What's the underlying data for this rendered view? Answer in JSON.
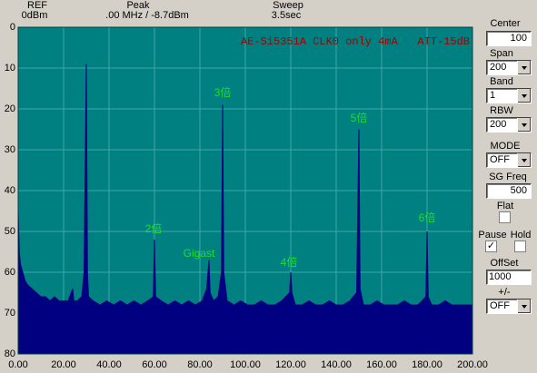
{
  "header": {
    "ref_label": "REF",
    "ref_value": "0dBm",
    "peak_label": "Peak",
    "peak_value": ".00 MHz / -8.7dBm",
    "sweep_label": "Sweep",
    "sweep_value": "3.5sec"
  },
  "chart_data": {
    "type": "area",
    "title": "AE-Si5351A CLK0 only 4mA   ATT-15dB",
    "x": [
      0,
      0.5,
      1,
      2,
      3,
      4,
      6,
      8,
      10,
      12,
      14,
      16,
      18,
      20,
      22,
      24,
      24.5,
      26,
      28,
      29,
      30,
      30.5,
      31,
      33,
      36,
      39,
      42,
      45,
      48,
      51,
      54,
      57,
      59.5,
      60,
      60.5,
      63,
      66,
      69,
      72,
      75,
      78,
      81,
      83,
      84,
      84.5,
      86,
      88,
      89.5,
      90,
      90.5,
      92,
      95,
      98,
      101,
      104,
      107,
      110,
      113,
      116,
      119.5,
      120,
      120.5,
      122,
      125,
      128,
      131,
      134,
      137,
      140,
      143,
      146,
      149,
      150,
      150.5,
      152,
      155,
      158,
      161,
      164,
      167,
      170,
      173,
      176,
      179.5,
      180,
      180.5,
      182,
      185,
      188,
      191,
      194,
      197,
      200
    ],
    "values": [
      45,
      55,
      58,
      60,
      62,
      63,
      64,
      65,
      66,
      66,
      67,
      66,
      67,
      67,
      67,
      64,
      67,
      67,
      66,
      60,
      9,
      60,
      66,
      67,
      68,
      67,
      68,
      67,
      68,
      67,
      68,
      67,
      66,
      52,
      66,
      67,
      68,
      67,
      68,
      67,
      68,
      67,
      64,
      57,
      65,
      67,
      66,
      60,
      19,
      60,
      67,
      68,
      67,
      68,
      68,
      67,
      68,
      68,
      67,
      65,
      60,
      65,
      68,
      68,
      67,
      68,
      68,
      67,
      68,
      68,
      67,
      65,
      25,
      64,
      68,
      68,
      67,
      68,
      68,
      68,
      67,
      68,
      68,
      66,
      50,
      66,
      68,
      68,
      67,
      68,
      68,
      68,
      68
    ],
    "color": "#000080",
    "background": "#008080",
    "grid_color": "#40a8a8",
    "grid": true,
    "y_inverted": true,
    "xlim": [
      0,
      200
    ],
    "ylim": [
      0,
      80
    ],
    "xticks": [
      {
        "value": 0,
        "label": "0.00"
      },
      {
        "value": 20,
        "label": "20.00"
      },
      {
        "value": 40,
        "label": "40.00"
      },
      {
        "value": 60,
        "label": "60.00"
      },
      {
        "value": 80,
        "label": "80.00"
      },
      {
        "value": 100,
        "label": "100.00"
      },
      {
        "value": 120,
        "label": "120.00"
      },
      {
        "value": 140,
        "label": "140.00"
      },
      {
        "value": 160,
        "label": "160.00"
      },
      {
        "value": 180,
        "label": "180.00"
      },
      {
        "value": 200,
        "label": "200.00"
      }
    ],
    "yticks": [
      0,
      10,
      20,
      30,
      40,
      50,
      60,
      70,
      80
    ],
    "annotations": [
      "3倍",
      "2倍",
      "Gigast",
      "4倍",
      "5倍",
      "6倍"
    ]
  },
  "controls": {
    "center_label": "Center",
    "center_value": "100",
    "span_label": "Span",
    "span_value": "200",
    "band_label": "Band",
    "band_value": "1",
    "rbw_label": "RBW",
    "rbw_value": "200",
    "mode_label": "MODE",
    "mode_value": "OFF",
    "sgfreq_label": "SG Freq",
    "sgfreq_value": "500",
    "flat_label": "Flat",
    "pause_label": "Pause",
    "hold_label": "Hold",
    "offset_label": "OffSet",
    "offset_value": "1000",
    "sign_label": "+/-",
    "sign_value": "OFF"
  }
}
